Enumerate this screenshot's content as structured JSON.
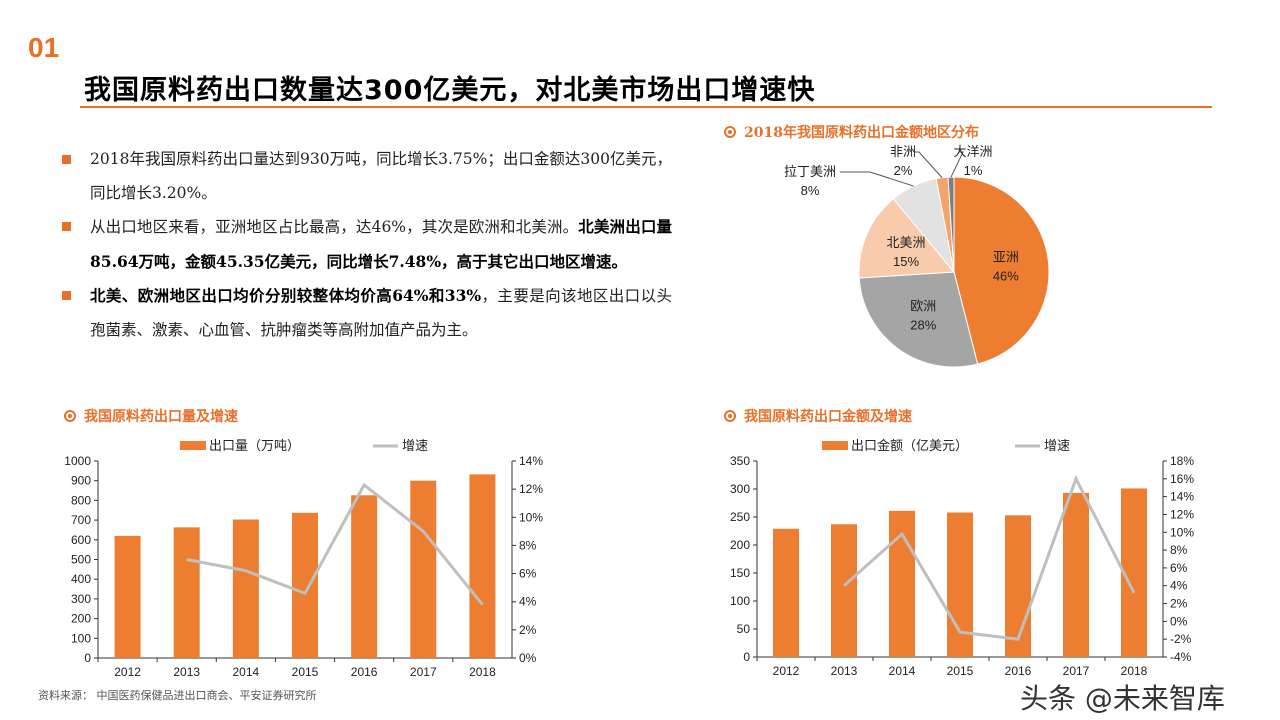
{
  "header": {
    "section_number": "01",
    "title": "我国原料药出口数量达300亿美元，对北美市场出口增速快"
  },
  "bullets": [
    {
      "text": "2018年我国原料药出口量达到930万吨，同比增长3.75%；出口金额达300亿美元，同比增长3.20%。",
      "bold": ""
    },
    {
      "text": "从出口地区来看，亚洲地区占比最高，达46%，其次是欧洲和北美洲。",
      "bold": "北美洲出口量85.64万吨，金额45.35亿美元，同比增长7.48%，高于其它出口地区增速。"
    },
    {
      "bold_prefix": "北美、欧洲地区出口均价分别较整体均价高64%和33%",
      "text": "，主要是向该地区出口以头孢菌素、激素、心血管、抗肿瘤类等高附加值产品为主。"
    }
  ],
  "sections": {
    "pie_title": "2018年我国原料药出口金额地区分布",
    "chart1_title": "我国原料药出口量及增速",
    "chart2_title": "我国原料药出口金额及增速"
  },
  "source": "资料来源： 中国医药保健品进出口商会、平安证券研究所",
  "watermark": "头条 @未来智库",
  "colors": {
    "accent": "#E8702A",
    "bar": "#ED7D31",
    "line": "#BFBFBF"
  },
  "chart_data": [
    {
      "type": "pie",
      "title": "2018年我国原料药出口金额地区分布",
      "slices": [
        {
          "label": "亚洲",
          "value": 46,
          "pct": "46%",
          "color": "#ED7D31"
        },
        {
          "label": "欧洲",
          "value": 28,
          "pct": "28%",
          "color": "#A5A5A5"
        },
        {
          "label": "北美洲",
          "value": 15,
          "pct": "15%",
          "color": "#F8CBAD"
        },
        {
          "label": "拉丁美洲",
          "value": 8,
          "pct": "8%",
          "color": "#E2E2E2"
        },
        {
          "label": "非洲",
          "value": 2,
          "pct": "2%",
          "color": "#F4A46A"
        },
        {
          "label": "大洋洲",
          "value": 1,
          "pct": "1%",
          "color": "#7F7F7F"
        }
      ]
    },
    {
      "type": "bar+line",
      "title": "我国原料药出口量及增速",
      "categories": [
        "2012",
        "2013",
        "2014",
        "2015",
        "2016",
        "2017",
        "2018"
      ],
      "series": [
        {
          "name": "出口量（万吨）",
          "type": "bar",
          "axis": "left",
          "values": [
            620,
            663,
            703,
            737,
            826,
            900,
            932
          ]
        },
        {
          "name": "增速",
          "type": "line",
          "axis": "right",
          "values": [
            null,
            7.0,
            6.2,
            4.6,
            12.3,
            9.0,
            3.8
          ]
        }
      ],
      "left_ylim": [
        0,
        1000
      ],
      "left_ticks": [
        "0",
        "100",
        "200",
        "300",
        "400",
        "500",
        "600",
        "700",
        "800",
        "900",
        "1000"
      ],
      "right_ylim": [
        0,
        14
      ],
      "right_ticks": [
        "0%",
        "2%",
        "4%",
        "6%",
        "8%",
        "10%",
        "12%",
        "14%"
      ],
      "legend": "top"
    },
    {
      "type": "bar+line",
      "title": "我国原料药出口金额及增速",
      "categories": [
        "2012",
        "2013",
        "2014",
        "2015",
        "2016",
        "2017",
        "2018"
      ],
      "series": [
        {
          "name": "出口金额（亿美元）",
          "type": "bar",
          "axis": "left",
          "values": [
            229,
            237,
            261,
            258,
            253,
            293,
            301
          ]
        },
        {
          "name": "增速",
          "type": "line",
          "axis": "right",
          "values": [
            null,
            4.0,
            9.8,
            -1.2,
            -2.0,
            16.0,
            3.2
          ]
        }
      ],
      "left_ylim": [
        0,
        350
      ],
      "left_ticks": [
        "0",
        "50",
        "100",
        "150",
        "200",
        "250",
        "300",
        "350"
      ],
      "right_ylim": [
        -4,
        18
      ],
      "right_ticks": [
        "-4%",
        "-2%",
        "0%",
        "2%",
        "4%",
        "6%",
        "8%",
        "10%",
        "12%",
        "14%",
        "16%",
        "18%"
      ],
      "legend": "top"
    }
  ]
}
